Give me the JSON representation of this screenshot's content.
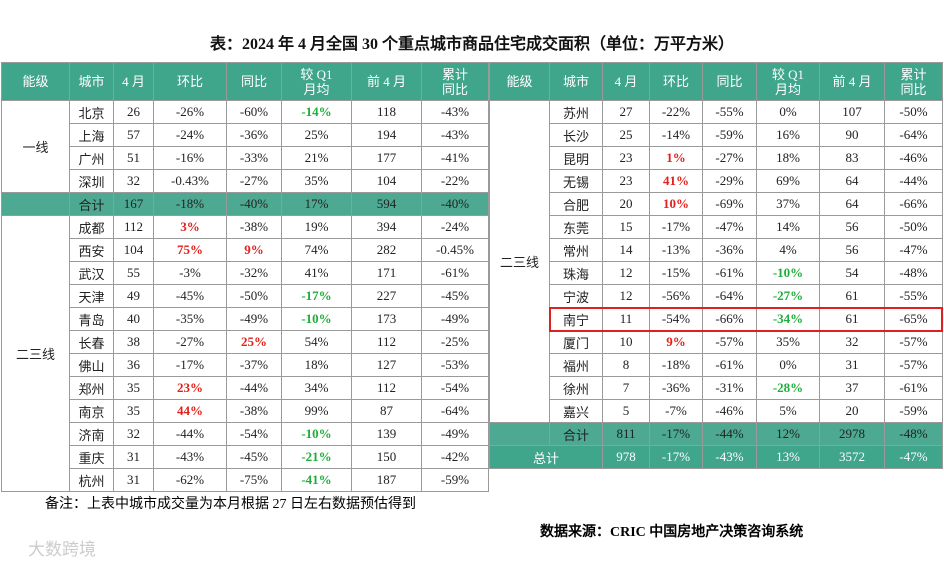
{
  "title": "表：2024 年 4 月全国 30 个重点城市商品住宅成交面积（单位：万平方米）",
  "headers": [
    [
      "能级"
    ],
    [
      "城市"
    ],
    [
      "4 月"
    ],
    [
      "环比"
    ],
    [
      "同比"
    ],
    [
      "较 Q1",
      "月均"
    ],
    [
      "前 4 月"
    ],
    [
      "累计",
      "同比"
    ]
  ],
  "left": {
    "groups": [
      {
        "tier": "一线",
        "rows": [
          {
            "cells": [
              "北京",
              "26",
              "-26%",
              "-60%",
              "-14%",
              "118",
              "-43%"
            ],
            "green": [
              4
            ]
          },
          {
            "cells": [
              "上海",
              "57",
              "-24%",
              "-36%",
              "25%",
              "194",
              "-43%"
            ]
          },
          {
            "cells": [
              "广州",
              "51",
              "-16%",
              "-33%",
              "21%",
              "177",
              "-41%"
            ]
          },
          {
            "cells": [
              "深圳",
              "32",
              "-0.43%",
              "-27%",
              "35%",
              "104",
              "-22%"
            ]
          }
        ]
      },
      {
        "tier": "二三线",
        "rows": [
          {
            "cells": [
              "成都",
              "112",
              "3%",
              "-38%",
              "19%",
              "394",
              "-24%"
            ],
            "red": [
              2
            ]
          },
          {
            "cells": [
              "西安",
              "104",
              "75%",
              "9%",
              "74%",
              "282",
              "-0.45%"
            ],
            "red": [
              2,
              3
            ]
          },
          {
            "cells": [
              "武汉",
              "55",
              "-3%",
              "-32%",
              "41%",
              "171",
              "-61%"
            ]
          },
          {
            "cells": [
              "天津",
              "49",
              "-45%",
              "-50%",
              "-17%",
              "227",
              "-45%"
            ],
            "green": [
              4
            ]
          },
          {
            "cells": [
              "青岛",
              "40",
              "-35%",
              "-49%",
              "-10%",
              "173",
              "-49%"
            ],
            "green": [
              4
            ]
          },
          {
            "cells": [
              "长春",
              "38",
              "-27%",
              "25%",
              "54%",
              "112",
              "-25%"
            ],
            "red": [
              3
            ]
          },
          {
            "cells": [
              "佛山",
              "36",
              "-17%",
              "-37%",
              "18%",
              "127",
              "-53%"
            ]
          },
          {
            "cells": [
              "郑州",
              "35",
              "23%",
              "-44%",
              "34%",
              "112",
              "-54%"
            ],
            "red": [
              2
            ]
          },
          {
            "cells": [
              "南京",
              "35",
              "44%",
              "-38%",
              "99%",
              "87",
              "-64%"
            ],
            "red": [
              2
            ]
          },
          {
            "cells": [
              "济南",
              "32",
              "-44%",
              "-54%",
              "-10%",
              "139",
              "-49%"
            ],
            "green": [
              4
            ]
          },
          {
            "cells": [
              "重庆",
              "31",
              "-43%",
              "-45%",
              "-21%",
              "150",
              "-42%"
            ],
            "green": [
              4
            ]
          },
          {
            "cells": [
              "杭州",
              "31",
              "-62%",
              "-75%",
              "-41%",
              "187",
              "-59%"
            ],
            "green": [
              4
            ]
          }
        ]
      }
    ],
    "subtotal": [
      "合计",
      "167",
      "-18%",
      "-40%",
      "17%",
      "594",
      "-40%"
    ]
  },
  "right": {
    "groups": [
      {
        "tier": "二三线",
        "rows": [
          {
            "cells": [
              "苏州",
              "27",
              "-22%",
              "-55%",
              "0%",
              "107",
              "-50%"
            ]
          },
          {
            "cells": [
              "长沙",
              "25",
              "-14%",
              "-59%",
              "16%",
              "90",
              "-64%"
            ]
          },
          {
            "cells": [
              "昆明",
              "23",
              "1%",
              "-27%",
              "18%",
              "83",
              "-46%"
            ],
            "red": [
              2
            ]
          },
          {
            "cells": [
              "无锡",
              "23",
              "41%",
              "-29%",
              "69%",
              "64",
              "-44%"
            ],
            "red": [
              2
            ]
          },
          {
            "cells": [
              "合肥",
              "20",
              "10%",
              "-69%",
              "37%",
              "64",
              "-66%"
            ],
            "red": [
              2
            ]
          },
          {
            "cells": [
              "东莞",
              "15",
              "-17%",
              "-47%",
              "14%",
              "56",
              "-50%"
            ]
          },
          {
            "cells": [
              "常州",
              "14",
              "-13%",
              "-36%",
              "4%",
              "56",
              "-47%"
            ]
          },
          {
            "cells": [
              "珠海",
              "12",
              "-15%",
              "-61%",
              "-10%",
              "54",
              "-48%"
            ],
            "green": [
              4
            ]
          },
          {
            "cells": [
              "宁波",
              "12",
              "-56%",
              "-64%",
              "-27%",
              "61",
              "-55%"
            ],
            "green": [
              4
            ]
          },
          {
            "cells": [
              "南宁",
              "11",
              "-54%",
              "-66%",
              "-34%",
              "61",
              "-65%"
            ],
            "green": [
              4
            ],
            "highlight": true
          },
          {
            "cells": [
              "厦门",
              "10",
              "9%",
              "-57%",
              "35%",
              "32",
              "-57%"
            ],
            "red": [
              2
            ]
          },
          {
            "cells": [
              "福州",
              "8",
              "-18%",
              "-61%",
              "0%",
              "31",
              "-57%"
            ]
          },
          {
            "cells": [
              "徐州",
              "7",
              "-36%",
              "-31%",
              "-28%",
              "37",
              "-61%"
            ],
            "green": [
              4
            ]
          },
          {
            "cells": [
              "嘉兴",
              "5",
              "-7%",
              "-46%",
              "5%",
              "20",
              "-59%"
            ]
          }
        ]
      }
    ],
    "subtotal": [
      "合计",
      "811",
      "-17%",
      "-44%",
      "12%",
      "2978",
      "-48%"
    ],
    "total": [
      "总计",
      "978",
      "-17%",
      "-43%",
      "13%",
      "3572",
      "-47%"
    ]
  },
  "note": "备注：上表中城市成交量为本月根据 27 日左右数据预估得到",
  "source": "数据来源：CRIC 中国房地产决策咨询系统",
  "watermark": "大数跨境"
}
